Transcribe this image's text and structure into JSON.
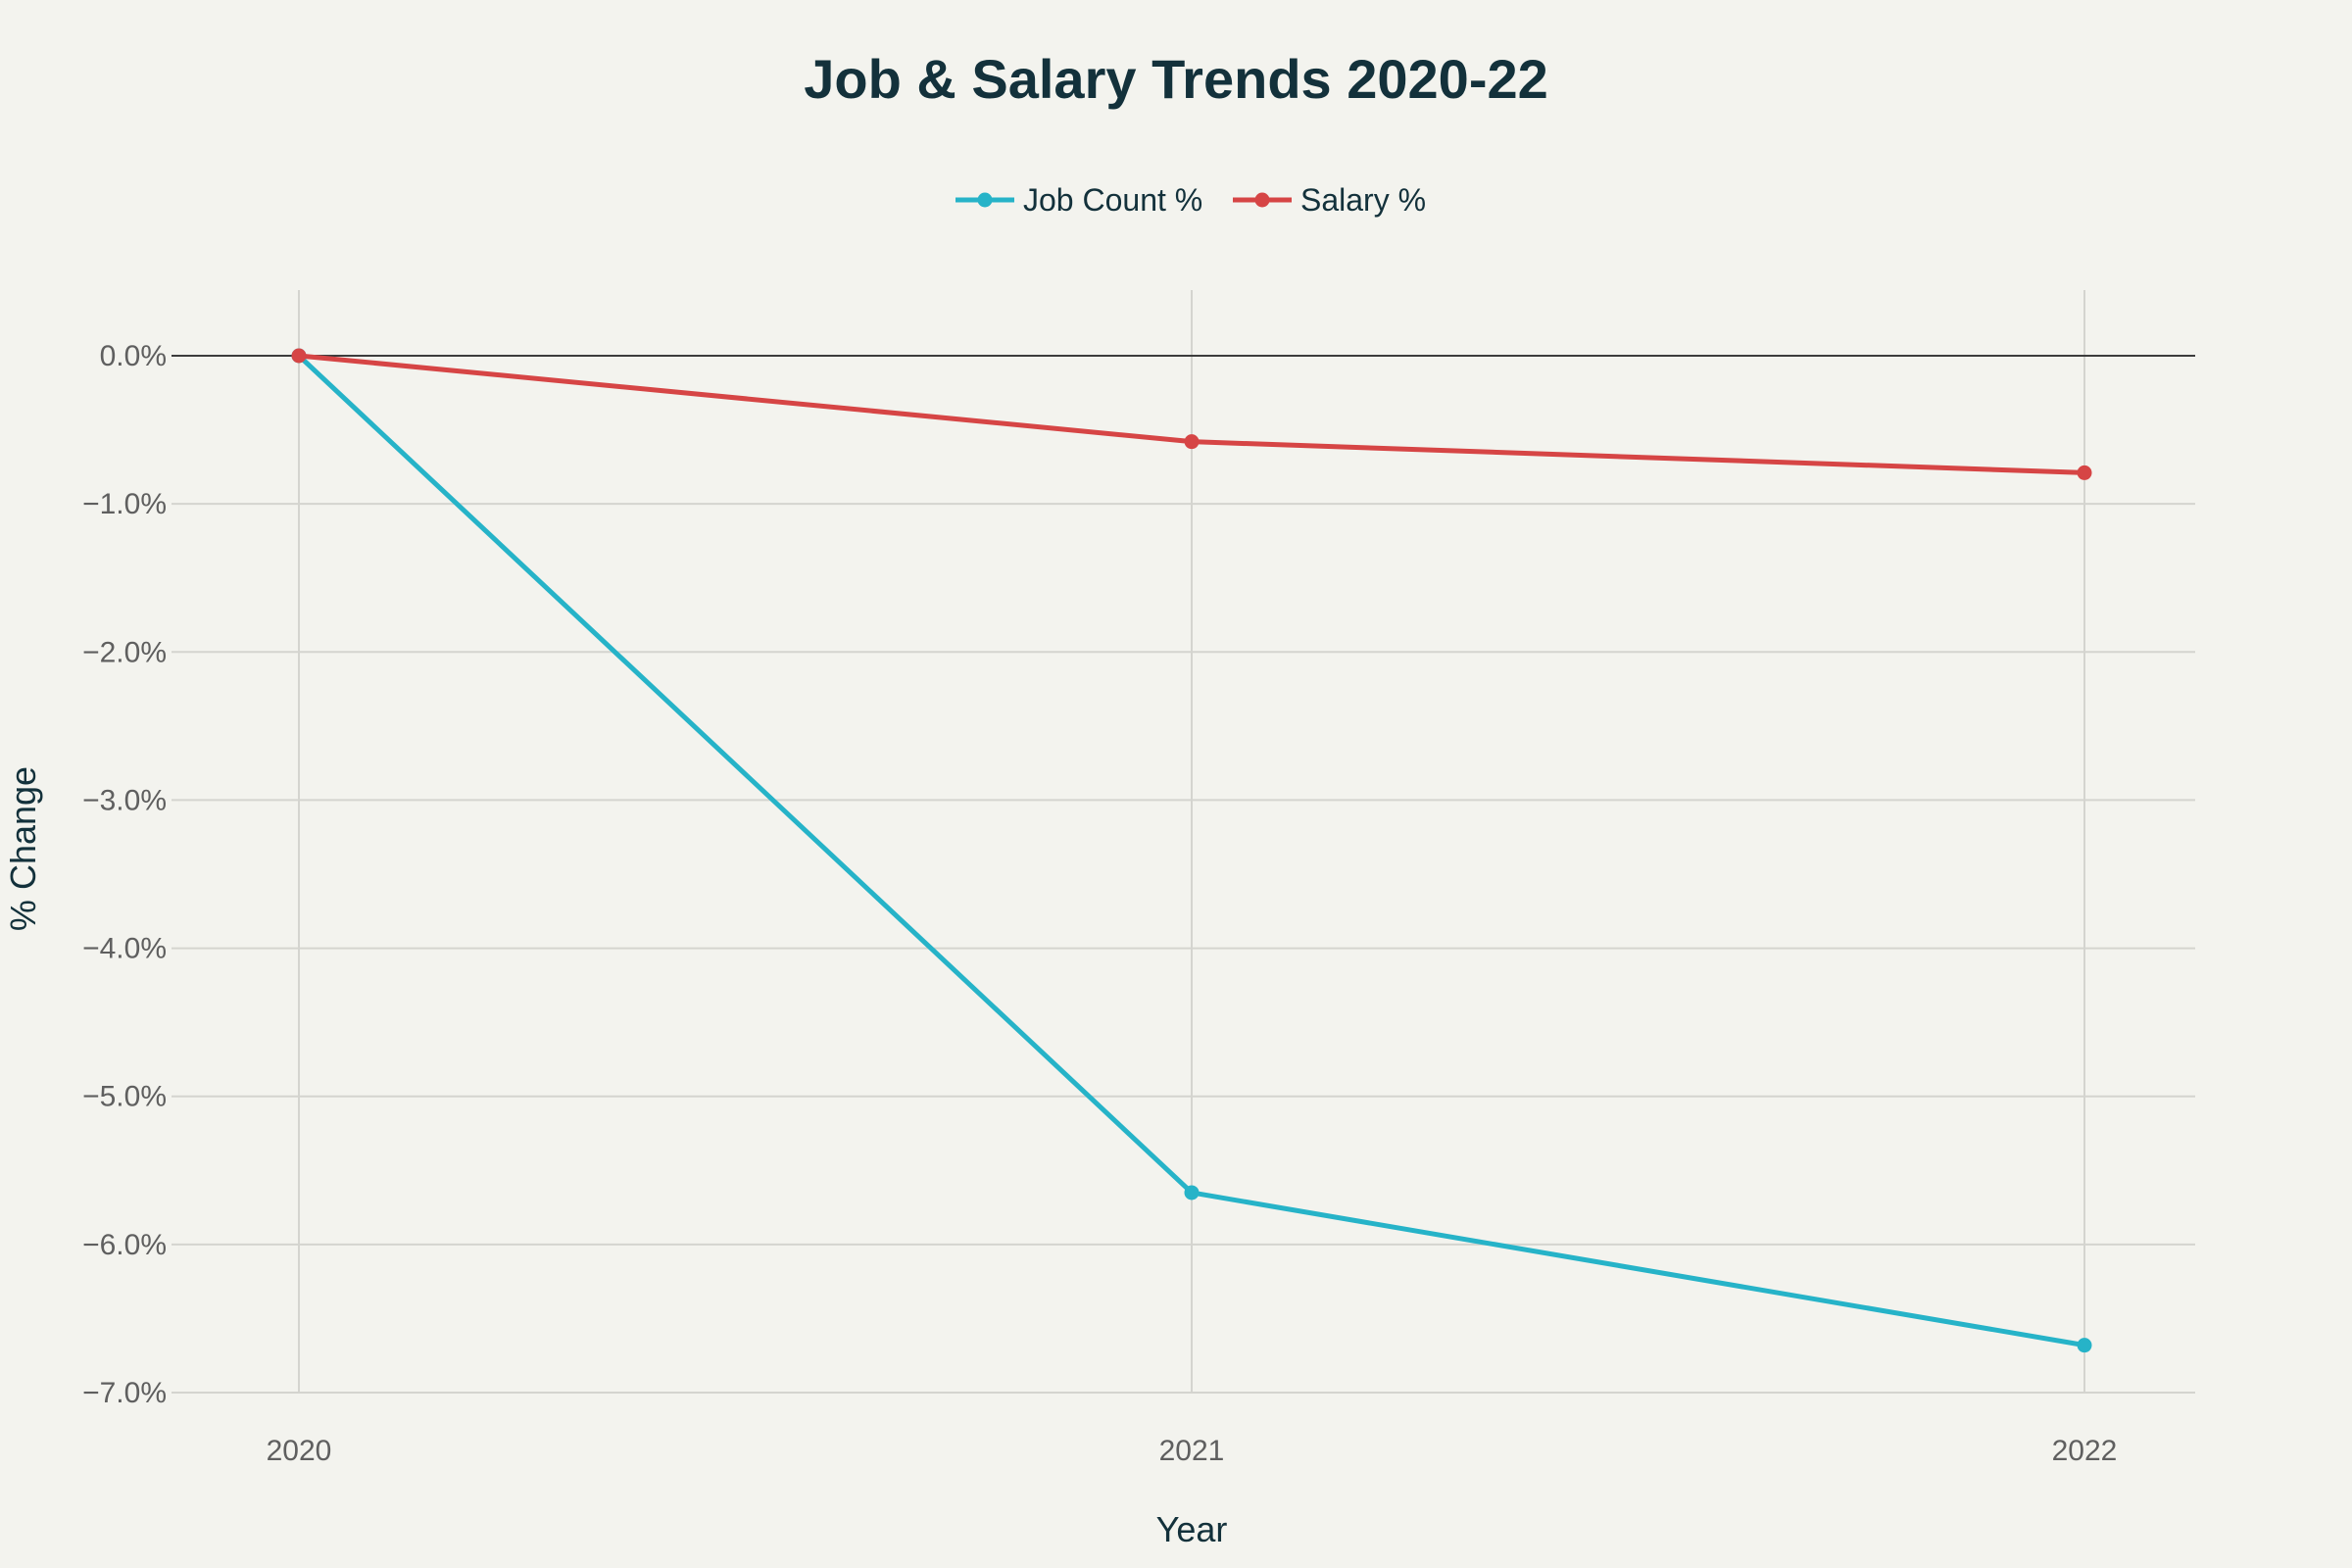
{
  "chart_data": {
    "type": "line",
    "title": "Job & Salary Trends 2020-22",
    "xlabel": "Year",
    "ylabel": "% Change",
    "x": [
      "2020",
      "2021",
      "2022"
    ],
    "series": [
      {
        "name": "Job Count %",
        "color": "#26b3c8",
        "values": [
          0.0,
          -5.65,
          -6.68
        ]
      },
      {
        "name": "Salary %",
        "color": "#d64545",
        "values": [
          0.0,
          -0.58,
          -0.79
        ]
      }
    ],
    "ylim": [
      -7.0,
      0.0
    ],
    "yticks": [
      0.0,
      -1.0,
      -2.0,
      -3.0,
      -4.0,
      -5.0,
      -6.0,
      -7.0
    ],
    "ytick_labels": [
      "0.0%",
      "−1.0%",
      "−2.0%",
      "−3.0%",
      "−4.0%",
      "−5.0%",
      "−6.0%",
      "−7.0%"
    ],
    "grid": true,
    "legend_position": "top-center",
    "colors": {
      "background": "#f3f3ee",
      "grid": "#d4d4cf",
      "zeroline": "#3c3c3c"
    }
  }
}
